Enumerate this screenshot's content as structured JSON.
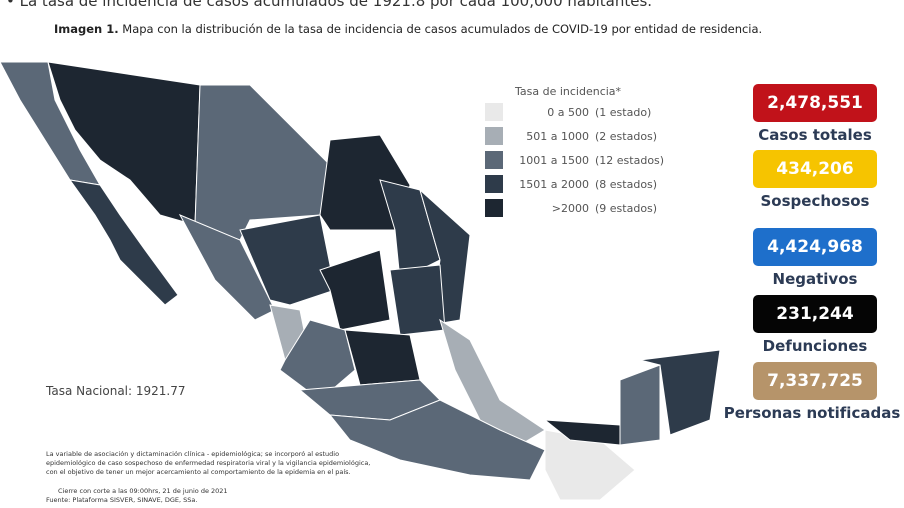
{
  "header": {
    "intro": "• La tasa de incidencia de casos acumulados de 1921.8 por cada 100,000 habitantes.",
    "title_label": "Imagen 1.",
    "title": "Mapa con la distribución de la tasa de incidencia de casos acumulados de COVID-19 por entidad de residencia."
  },
  "legend": {
    "title": "Tasa de incidencia*",
    "items": [
      {
        "range": "0 a  500",
        "count": "(1 estado)",
        "color": "#e9e9e9"
      },
      {
        "range": "501 a  1000",
        "count": "(2 estados)",
        "color": "#a7aeb5"
      },
      {
        "range": "1001 a  1500",
        "count": "(12 estados)",
        "color": "#5b6877"
      },
      {
        "range": "1501 a  2000",
        "count": "(8 estados)",
        "color": "#2e3b4a"
      },
      {
        "range": ">2000",
        "count": "(9 estados)",
        "color": "#1d2631"
      }
    ]
  },
  "national_rate": "Tasa Nacional: 1921.77",
  "stats": [
    {
      "value": "2,478,551",
      "label": "Casos totales",
      "color": "#c1121a"
    },
    {
      "value": "434,206",
      "label": "Sospechosos",
      "color": "#f6c400"
    },
    {
      "value": "4,424,968",
      "label": "Negativos",
      "color": "#1e6fcb"
    },
    {
      "value": "231,244",
      "label": "Defunciones",
      "color": "#050505"
    },
    {
      "value": "7,337,725",
      "label": "Personas notificadas",
      "color": "#b6946a"
    }
  ],
  "notes": [
    "La variable de asociación y dictaminación clínica - epidemiológica; se incorporó al estudio",
    "epidemiológico de caso sospechoso de enfermedad respiratoria viral y la vigilancia epidemiológica,",
    "con el objetivo de tener un mejor acercamiento al comportamiento de la epidemia en el país."
  ],
  "closing": "Cierre con corte a las 09:00hrs, 21 de junio de 2021",
  "source": "Fuente: Plataforma SISVER, SINAVE, DGE, SSa."
}
